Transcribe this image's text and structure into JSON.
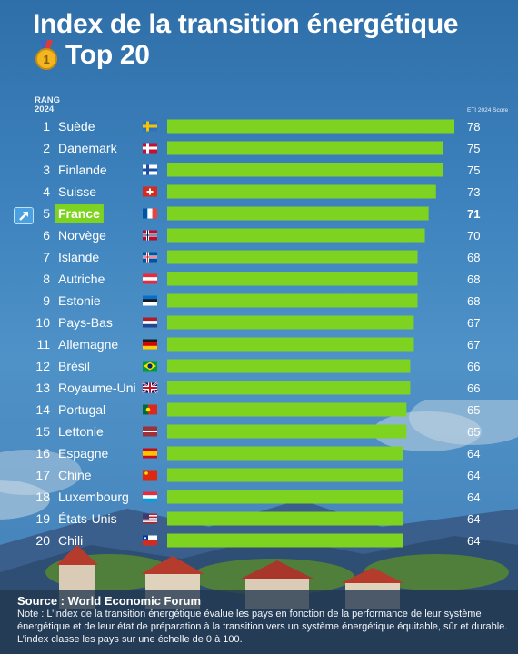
{
  "title_line1": "Index de la transition énergétique",
  "title_line2": "Top 20",
  "rank_header_line1": "RANG",
  "rank_header_line2": "2024",
  "score_header": "ETI 2024 Score",
  "highlight_country": "France",
  "source": "Source : World Economic Forum",
  "note": "Note : L’index de la transition énergétique évalue les pays en fonction de la performance de leur système énergétique et de leur état de préparation à la transition vers un système énergétique équitable, sûr et durable. L’index classe les pays sur une échelle de 0 à 100.",
  "colors": {
    "bar": "#7ed321",
    "highlight_bg": "#7ed321",
    "badge": "#4aa0e0"
  },
  "chart_data": {
    "type": "bar",
    "orientation": "horizontal",
    "categories": [
      "Suède",
      "Danemark",
      "Finlande",
      "Suisse",
      "France",
      "Norvège",
      "Islande",
      "Autriche",
      "Estonie",
      "Pays-Bas",
      "Allemagne",
      "Brésil",
      "Royaume-Uni",
      "Portugal",
      "Lettonie",
      "Espagne",
      "Chine",
      "Luxembourg",
      "États-Unis",
      "Chili"
    ],
    "ranks": [
      1,
      2,
      3,
      4,
      5,
      6,
      7,
      8,
      9,
      10,
      11,
      12,
      13,
      14,
      15,
      16,
      17,
      18,
      19,
      20
    ],
    "values": [
      78,
      75,
      75,
      73,
      71,
      70,
      68,
      68,
      68,
      67,
      67,
      66,
      66,
      65,
      65,
      64,
      64,
      64,
      64,
      64
    ],
    "flags": [
      "se",
      "dk",
      "fi",
      "ch",
      "fr",
      "no",
      "is",
      "at",
      "ee",
      "nl",
      "de",
      "br",
      "gb",
      "pt",
      "lv",
      "es",
      "cn",
      "lu",
      "us",
      "cl"
    ],
    "xlim": [
      0,
      78
    ]
  }
}
